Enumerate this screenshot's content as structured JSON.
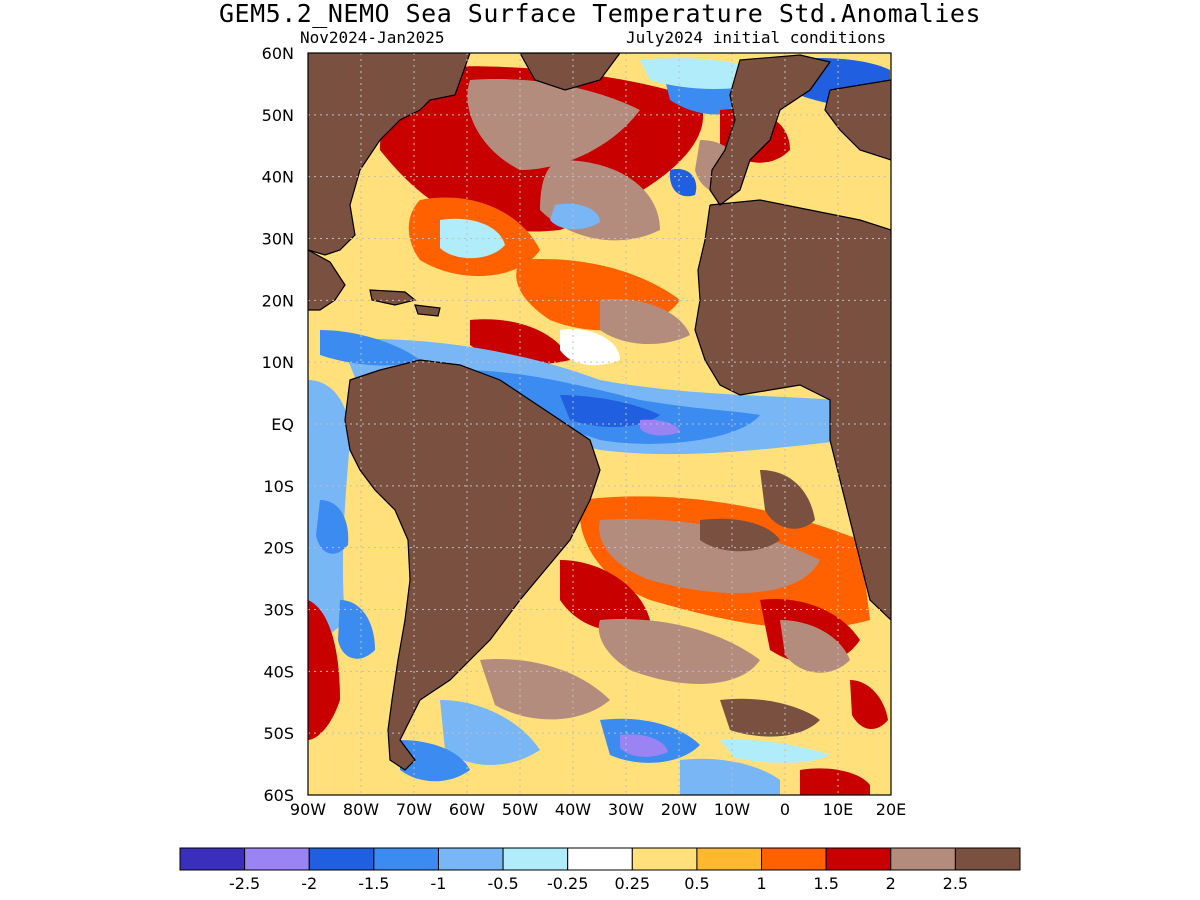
{
  "title": "GEM5.2_NEMO Sea Surface Temperature Std.Anomalies",
  "period": "Nov2024-Jan2025",
  "initial_conditions": "July2024 initial conditions",
  "axes": {
    "lat_labels": [
      "60N",
      "50N",
      "40N",
      "30N",
      "20N",
      "10N",
      "EQ",
      "10S",
      "20S",
      "30S",
      "40S",
      "50S",
      "60S"
    ],
    "lon_labels": [
      "90W",
      "80W",
      "70W",
      "60W",
      "50W",
      "40W",
      "30W",
      "20W",
      "10W",
      "0",
      "10E",
      "20E"
    ]
  },
  "colorbar": {
    "colors": [
      "#3a2fbd",
      "#9a84f3",
      "#1f5fe0",
      "#3b8bf0",
      "#78b6f5",
      "#b0ecfa",
      "#ffffff",
      "#ffe07a",
      "#ffb830",
      "#ff6000",
      "#c80000",
      "#b48c7e",
      "#7a5040"
    ],
    "labels": [
      "-2.5",
      "-2",
      "-1.5",
      "-1",
      "-0.5",
      "-0.25",
      "0.25",
      "0.5",
      "1",
      "1.5",
      "2",
      "2.5"
    ]
  },
  "map_colors": {
    "land": "#7a5040",
    "ocean_base": "#ffe07a",
    "coast": "#000000",
    "grid": "#bfbfbf",
    "frame": "#000000"
  }
}
